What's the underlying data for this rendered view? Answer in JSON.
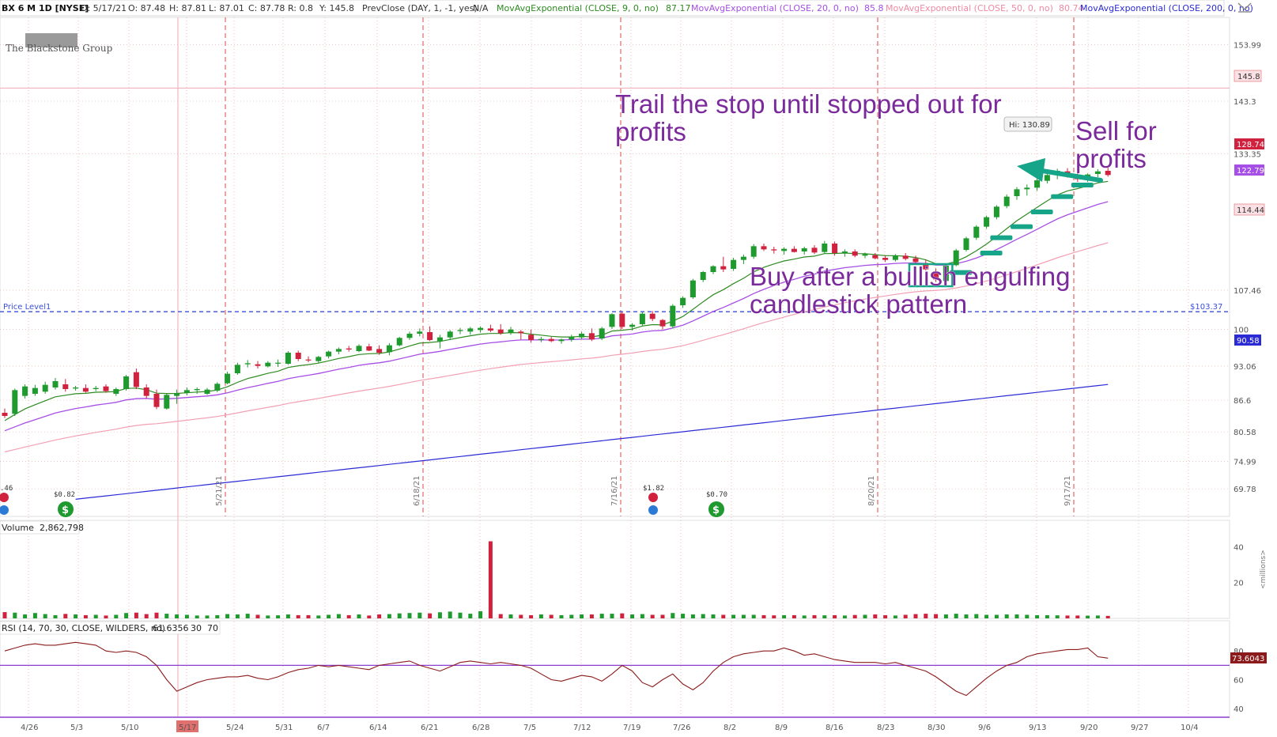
{
  "header": {
    "symbol": "BX 6 M 1D [NYSE]",
    "date": "D: 5/17/21",
    "open": "O: 87.48",
    "high": "H: 87.81",
    "low": "L: 87.01",
    "close": "C: 87.78",
    "range": "R: 0.8",
    "y": "Y: 145.8",
    "prevclose": "PrevClose (DAY, 1, -1, yes)",
    "prevclose_val": "N/A",
    "ema9": "MovAvgExponential (CLOSE, 9, 0, no)",
    "ema9_val": "87.17",
    "ema20": "MovAvgExponential (CLOSE, 20, 0, no)",
    "ema20_val": "85.8",
    "ema50": "MovAvgExponential (CLOSE, 50, 0, no)",
    "ema50_val": "80.74",
    "ema200": "MovAvgExponential (CLOSE, 200, 0, no)"
  },
  "logo": "The Blackstone Group",
  "price_level": {
    "label": "Price Level1",
    "value": "$103.37"
  },
  "hi_label": "Hi: 130.89",
  "price_tags": {
    "y_line": "145.8",
    "last": "128.74",
    "ema20": "122.79",
    "ema50": "114.44",
    "ema200": "90.58"
  },
  "annotations": {
    "trail_1": "Trail the stop until stopped out for",
    "trail_2": "profits",
    "sell_1": "Sell for",
    "sell_2": "profits",
    "buy_1": "Buy after a bullish engulfing",
    "buy_2": "candlestick pattern"
  },
  "events": {
    "div_1": "$0.82",
    "div_2": "$0.70",
    "earn_1": "$1.82",
    "earn_0": ".46"
  },
  "volume": {
    "title": "Volume",
    "value": "2,862,798",
    "unit": "<millions>"
  },
  "rsi": {
    "title": "RSI (14, 70, 30, CLOSE, WILDERS, no)",
    "value": "61.6356",
    "ob": "30",
    "os": "70",
    "last": "73.6043"
  },
  "colors": {
    "up": "#1f9a2e",
    "down": "#d0223e",
    "ema9": "#2e8b22",
    "ema20": "#a64fe6",
    "ema50": "#f2a0b4",
    "ema200": "#2b2bd6",
    "annot": "#7b2a9b",
    "arrow": "#17a589",
    "grid": "#e58a8a",
    "level": "#3a4fd8"
  },
  "chart_data": {
    "type": "candlestick",
    "x_dates": [
      "4/26",
      "5/3",
      "5/10",
      "5/17",
      "5/24",
      "5/31",
      "6/7",
      "6/14",
      "6/21",
      "6/28",
      "7/5",
      "7/12",
      "7/19",
      "7/26",
      "8/2",
      "8/9",
      "8/16",
      "8/23",
      "8/30",
      "9/6",
      "9/13",
      "9/20",
      "9/27",
      "10/4"
    ],
    "month_markers": [
      "5/21/21",
      "6/18/21",
      "7/16/21",
      "8/20/21",
      "9/17/21"
    ],
    "y_ticks": [
      153.99,
      143.3,
      133.35,
      107.46,
      100,
      93.06,
      86.6,
      80.58,
      74.99,
      69.78
    ],
    "ylim": [
      65,
      158
    ],
    "candles": [
      [
        84.2,
        85.0,
        83.2,
        83.6
      ],
      [
        84.0,
        88.8,
        83.6,
        88.5
      ],
      [
        87.4,
        89.6,
        86.9,
        89.2
      ],
      [
        87.8,
        89.5,
        87.4,
        88.9
      ],
      [
        88.2,
        90.1,
        87.8,
        89.5
      ],
      [
        89.0,
        90.8,
        88.6,
        90.2
      ],
      [
        89.6,
        90.6,
        88.2,
        88.7
      ],
      [
        88.8,
        89.3,
        88.4,
        89.0
      ],
      [
        88.9,
        89.6,
        88.0,
        88.2
      ],
      [
        88.7,
        89.3,
        88.3,
        88.9
      ],
      [
        89.2,
        89.6,
        88.0,
        88.3
      ],
      [
        87.8,
        89.0,
        87.4,
        88.7
      ],
      [
        88.7,
        91.4,
        88.4,
        91.1
      ],
      [
        91.9,
        92.6,
        88.7,
        89.1
      ],
      [
        89.0,
        89.6,
        86.9,
        87.4
      ],
      [
        87.8,
        88.6,
        84.9,
        85.3
      ],
      [
        85.0,
        87.8,
        84.8,
        87.6
      ],
      [
        87.4,
        88.6,
        85.9,
        87.9
      ],
      [
        88.0,
        89.0,
        87.5,
        88.5
      ],
      [
        88.5,
        89.0,
        87.8,
        88.7
      ],
      [
        87.8,
        88.9,
        87.6,
        88.6
      ],
      [
        88.4,
        90.0,
        88.1,
        89.7
      ],
      [
        89.8,
        92.0,
        89.6,
        91.6
      ],
      [
        91.7,
        93.7,
        91.4,
        93.3
      ],
      [
        93.4,
        94.2,
        92.8,
        93.6
      ],
      [
        93.4,
        94.0,
        92.6,
        93.1
      ],
      [
        93.0,
        94.0,
        92.8,
        93.7
      ],
      [
        93.6,
        94.3,
        92.9,
        93.7
      ],
      [
        93.5,
        95.9,
        93.3,
        95.6
      ],
      [
        95.6,
        96.0,
        94.0,
        94.4
      ],
      [
        94.3,
        94.9,
        93.8,
        94.2
      ],
      [
        94.0,
        95.0,
        93.6,
        94.8
      ],
      [
        94.9,
        96.0,
        94.5,
        95.8
      ],
      [
        95.8,
        96.6,
        95.3,
        96.3
      ],
      [
        96.4,
        96.9,
        95.8,
        96.2
      ],
      [
        95.9,
        97.2,
        95.7,
        96.9
      ],
      [
        96.8,
        97.3,
        95.9,
        96.0
      ],
      [
        96.3,
        97.0,
        95.2,
        95.6
      ],
      [
        95.7,
        97.4,
        95.1,
        97.0
      ],
      [
        97.0,
        98.6,
        96.8,
        98.4
      ],
      [
        98.4,
        99.6,
        98.0,
        99.2
      ],
      [
        99.2,
        100.2,
        98.7,
        99.6
      ],
      [
        99.5,
        100.6,
        97.8,
        98.0
      ],
      [
        97.8,
        99.0,
        96.4,
        98.5
      ],
      [
        98.5,
        99.9,
        98.0,
        99.6
      ],
      [
        99.7,
        100.3,
        99.1,
        99.9
      ],
      [
        99.6,
        100.5,
        99.0,
        100.2
      ],
      [
        99.9,
        100.6,
        99.4,
        100.3
      ],
      [
        100.2,
        100.9,
        99.5,
        99.8
      ],
      [
        100.0,
        101.0,
        99.0,
        99.3
      ],
      [
        99.4,
        100.5,
        99.0,
        100.0
      ],
      [
        99.6,
        99.9,
        98.1,
        99.3
      ],
      [
        99.0,
        100.0,
        97.5,
        98.0
      ],
      [
        98.0,
        98.6,
        97.6,
        98.2
      ],
      [
        98.2,
        98.6,
        97.6,
        97.8
      ],
      [
        97.8,
        98.3,
        97.3,
        98.1
      ],
      [
        98.1,
        99.0,
        97.7,
        98.6
      ],
      [
        98.5,
        99.6,
        98.1,
        99.2
      ],
      [
        99.3,
        100.2,
        97.8,
        98.1
      ],
      [
        98.3,
        100.5,
        98.0,
        100.2
      ],
      [
        100.5,
        103.1,
        100.1,
        102.9
      ],
      [
        103.0,
        103.3,
        100.1,
        100.5
      ],
      [
        100.5,
        101.2,
        99.8,
        100.9
      ],
      [
        101.0,
        103.3,
        100.6,
        103.0
      ],
      [
        103.0,
        103.5,
        101.6,
        102.0
      ],
      [
        101.8,
        102.0,
        100.0,
        100.6
      ],
      [
        100.6,
        104.8,
        100.2,
        104.5
      ],
      [
        104.6,
        106.3,
        104.1,
        106.0
      ],
      [
        106.1,
        109.6,
        105.8,
        109.3
      ],
      [
        109.4,
        111.1,
        109.0,
        110.9
      ],
      [
        110.9,
        112.2,
        110.5,
        112.0
      ],
      [
        112.0,
        113.8,
        110.9,
        111.4
      ],
      [
        111.5,
        113.6,
        111.1,
        113.2
      ],
      [
        113.2,
        114.2,
        112.4,
        113.8
      ],
      [
        113.8,
        116.2,
        113.4,
        115.8
      ],
      [
        115.8,
        116.3,
        114.9,
        115.2
      ],
      [
        115.2,
        115.7,
        114.4,
        115.0
      ],
      [
        114.9,
        115.6,
        114.2,
        115.3
      ],
      [
        115.3,
        115.8,
        114.6,
        114.7
      ],
      [
        114.8,
        115.7,
        114.2,
        115.4
      ],
      [
        115.5,
        116.0,
        114.3,
        114.6
      ],
      [
        114.7,
        116.8,
        114.3,
        116.3
      ],
      [
        116.3,
        116.7,
        114.0,
        114.5
      ],
      [
        114.5,
        115.2,
        113.8,
        114.8
      ],
      [
        114.8,
        115.2,
        113.7,
        114.0
      ],
      [
        114.0,
        114.6,
        113.5,
        114.3
      ],
      [
        114.1,
        114.5,
        113.3,
        113.5
      ],
      [
        113.6,
        114.0,
        112.8,
        113.2
      ],
      [
        113.2,
        114.3,
        112.9,
        114.0
      ],
      [
        114.0,
        114.5,
        113.1,
        113.4
      ],
      [
        113.5,
        114.0,
        112.5,
        112.8
      ],
      [
        112.6,
        113.2,
        111.2,
        111.4
      ],
      [
        111.0,
        111.6,
        109.0,
        109.5
      ],
      [
        109.2,
        112.5,
        108.8,
        112.1
      ],
      [
        112.2,
        115.3,
        112.0,
        115.0
      ],
      [
        115.1,
        117.6,
        114.8,
        117.3
      ],
      [
        117.4,
        119.8,
        117.0,
        119.5
      ],
      [
        119.5,
        121.6,
        119.1,
        121.3
      ],
      [
        121.3,
        123.6,
        120.9,
        123.3
      ],
      [
        123.4,
        125.6,
        123.0,
        125.2
      ],
      [
        125.3,
        127.0,
        124.6,
        126.6
      ],
      [
        126.6,
        127.5,
        125.4,
        126.9
      ],
      [
        126.9,
        128.6,
        126.3,
        128.3
      ],
      [
        128.2,
        129.6,
        127.7,
        129.3
      ],
      [
        129.4,
        130.5,
        128.5,
        130.1
      ],
      [
        130.0,
        130.6,
        128.8,
        129.3
      ],
      [
        129.4,
        130.1,
        128.0,
        128.5
      ],
      [
        128.5,
        129.6,
        128.0,
        129.4
      ],
      [
        129.5,
        130.4,
        128.9,
        130.0
      ],
      [
        130.1,
        130.9,
        129.0,
        129.3
      ]
    ],
    "volume_max": 45,
    "rsi_range": [
      35,
      90
    ]
  }
}
